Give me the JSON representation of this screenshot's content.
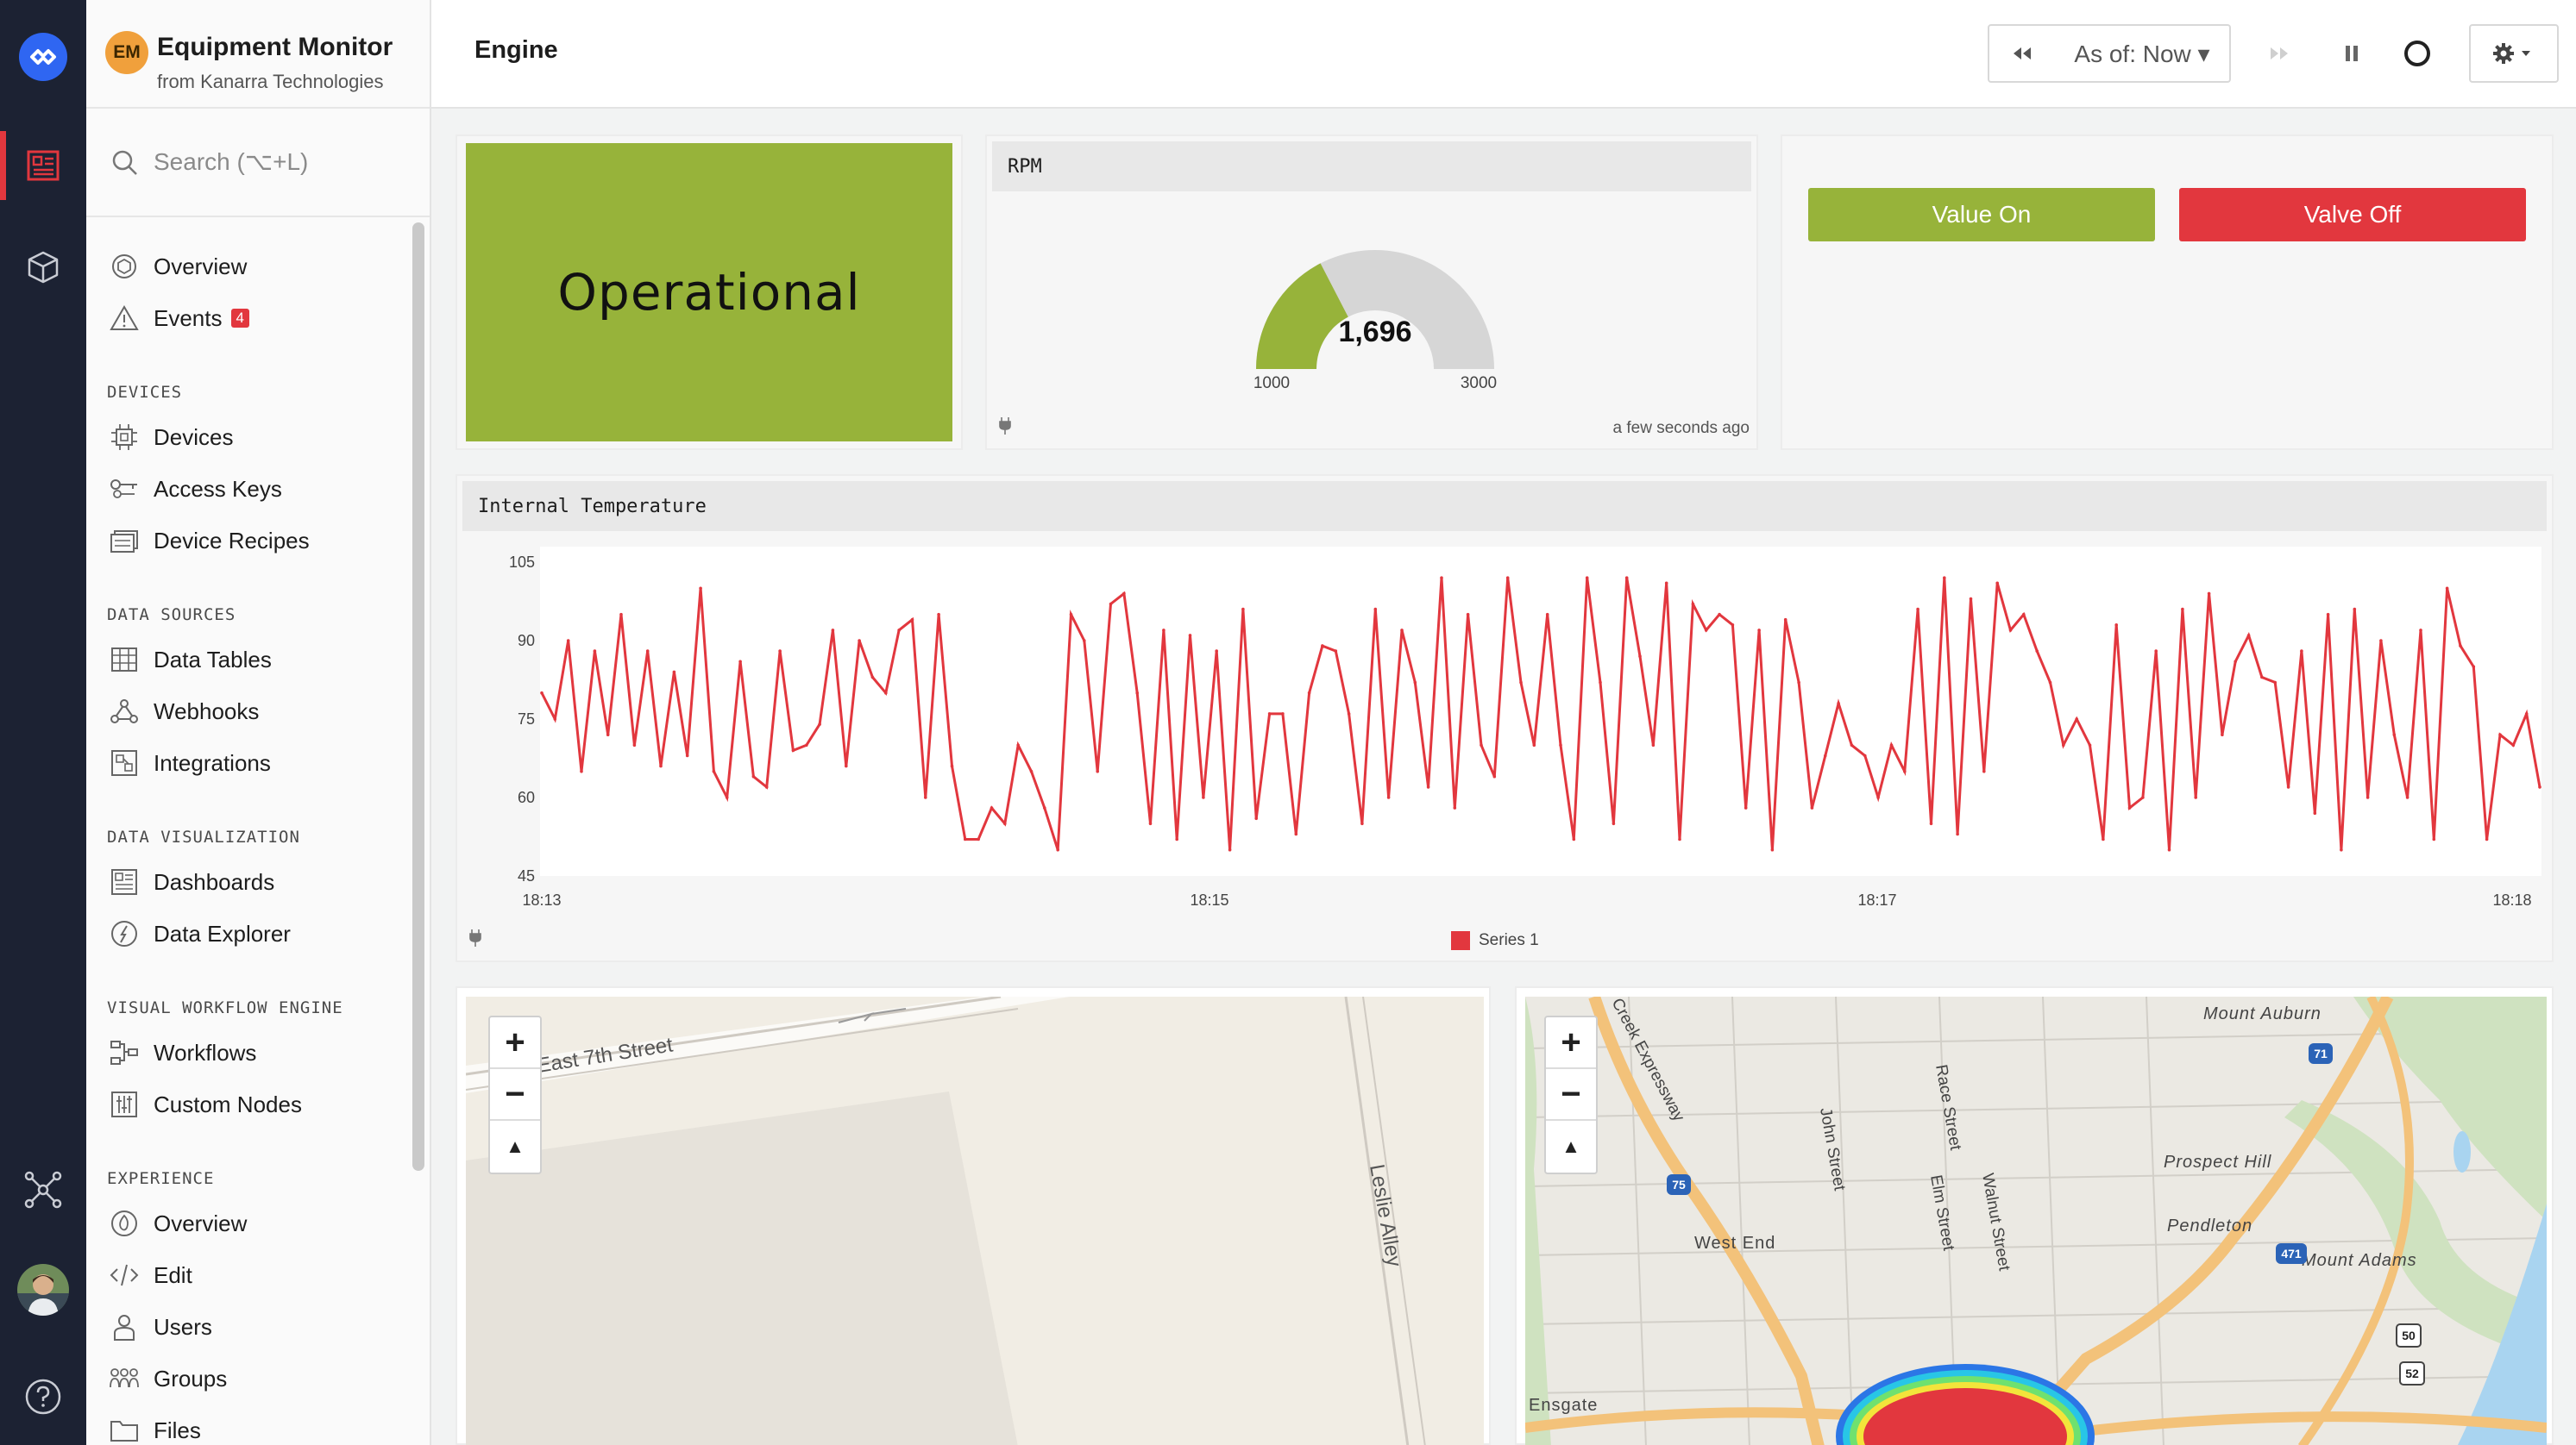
{
  "app": {
    "initials": "EM",
    "title": "Equipment Monitor",
    "subtitle": "from Kanarra Technologies"
  },
  "search": {
    "placeholder": "Search (⌥+L)"
  },
  "nav": {
    "overview": "Overview",
    "events": "Events",
    "events_badge": "4",
    "devices_head": "DEVICES",
    "devices": "Devices",
    "access_keys": "Access Keys",
    "device_recipes": "Device Recipes",
    "data_sources_head": "DATA SOURCES",
    "data_tables": "Data Tables",
    "webhooks": "Webhooks",
    "integrations": "Integrations",
    "data_viz_head": "DATA VISUALIZATION",
    "dashboards": "Dashboards",
    "data_explorer": "Data Explorer",
    "vwe_head": "VISUAL WORKFLOW ENGINE",
    "workflows": "Workflows",
    "custom_nodes": "Custom Nodes",
    "experience_head": "EXPERIENCE",
    "exp_overview": "Overview",
    "edit": "Edit",
    "users": "Users",
    "groups": "Groups",
    "files": "Files"
  },
  "header": {
    "title": "Engine",
    "as_of": "As of: Now ▾"
  },
  "status": {
    "text": "Operational",
    "color": "#97b33a"
  },
  "gauge": {
    "title": "RPM",
    "value": "1,696",
    "min": "1000",
    "max": "3000",
    "updated": "a few seconds ago",
    "value_num": 1696,
    "min_num": 1000,
    "max_num": 3000
  },
  "buttons": {
    "on": "Value On",
    "off": "Valve Off"
  },
  "temperature": {
    "title": "Internal Temperature",
    "legend": "Series 1"
  },
  "chart_data": {
    "type": "line",
    "title": "Internal Temperature",
    "xlabel": "",
    "ylabel": "",
    "ylim": [
      45,
      105
    ],
    "yticks": [
      "105",
      "90",
      "75",
      "60",
      "45"
    ],
    "xticks": [
      "18:13",
      "18:15",
      "18:17",
      "18:18"
    ],
    "series": [
      {
        "name": "Series 1",
        "color": "#e2373e",
        "values": [
          80,
          75,
          90,
          65,
          88,
          72,
          95,
          70,
          88,
          66,
          84,
          68,
          100,
          65,
          60,
          86,
          64,
          62,
          88,
          69,
          70,
          74,
          92,
          66,
          90,
          83,
          80,
          92,
          94,
          60,
          95,
          66,
          52,
          52,
          58,
          55,
          70,
          65,
          58,
          50,
          95,
          90,
          65,
          97,
          99,
          80,
          55,
          92,
          52,
          91,
          60,
          88,
          50,
          96,
          56,
          76,
          76,
          53,
          80,
          89,
          88,
          76,
          55,
          96,
          60,
          92,
          82,
          62,
          102,
          58,
          95,
          70,
          64,
          102,
          82,
          70,
          95,
          70,
          52,
          102,
          82,
          55,
          102,
          87,
          70,
          101,
          52,
          97,
          92,
          95,
          93,
          58,
          92,
          50,
          94,
          82,
          58,
          68,
          78,
          70,
          68,
          60,
          70,
          65,
          96,
          55,
          102,
          53,
          98,
          65,
          101,
          92,
          95,
          88,
          82,
          70,
          75,
          70,
          52,
          93,
          58,
          60,
          88,
          50,
          96,
          60,
          99,
          72,
          86,
          91,
          83,
          82,
          62,
          88,
          57,
          95,
          50,
          96,
          60,
          90,
          72,
          60,
          92,
          52,
          100,
          89,
          85,
          52,
          72,
          70,
          76,
          62
        ]
      }
    ]
  },
  "map1": {
    "street1": "East 7th Street",
    "street2": "Leslie Alley"
  },
  "map2": {
    "labels": [
      "Mount Auburn",
      "Prospect Hill",
      "Pendleton",
      "Mount Adams",
      "West End",
      "Ensgate",
      "Creek Expressway",
      "John Street",
      "Race Street",
      "Elm Street",
      "Walnut Street"
    ],
    "shields": [
      "71",
      "471",
      "75",
      "50",
      "52"
    ]
  }
}
